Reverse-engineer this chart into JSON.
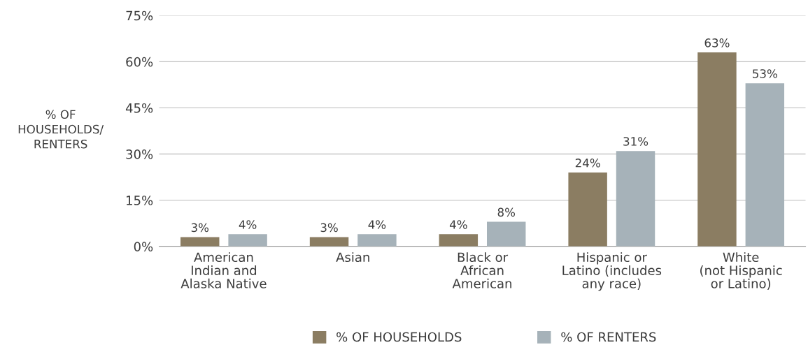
{
  "chart_data": {
    "type": "bar",
    "ylabel": "% OF\nHOUSEHOLDS/\nRENTERS",
    "categories": [
      "American\nIndian and\nAlaska Native",
      "Asian",
      "Black or\nAfrican\nAmerican",
      "Hispanic or\nLatino (includes\nany race)",
      "White\n(not Hispanic\nor Latino)"
    ],
    "series": [
      {
        "name": "% OF HOUSEHOLDS",
        "color": "#8b7d62",
        "values": [
          3,
          3,
          4,
          24,
          63
        ],
        "value_labels": [
          "3%",
          "3%",
          "4%",
          "24%",
          "63%"
        ]
      },
      {
        "name": "% OF RENTERS",
        "color": "#a6b2b9",
        "values": [
          4,
          4,
          8,
          31,
          53
        ],
        "value_labels": [
          "4%",
          "4%",
          "8%",
          "31%",
          "53%"
        ]
      }
    ],
    "ylim": [
      0,
      75
    ],
    "yticks": [
      {
        "value": 0,
        "label": "0%"
      },
      {
        "value": 15,
        "label": "15%"
      },
      {
        "value": 30,
        "label": "30%"
      },
      {
        "value": 45,
        "label": "45%"
      },
      {
        "value": 60,
        "label": "60%"
      },
      {
        "value": 75,
        "label": "75%"
      }
    ],
    "grid": "y",
    "legend": "bottom"
  }
}
